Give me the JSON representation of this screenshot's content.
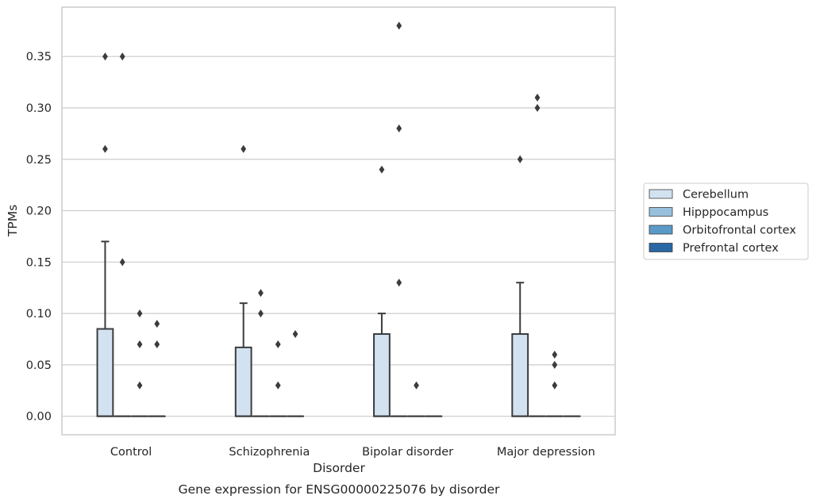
{
  "chart_data": {
    "type": "box",
    "title": "",
    "caption": "Gene expression for ENSG00000225076 by disorder",
    "xlabel": "Disorder",
    "ylabel": "TPMs",
    "ylim": [
      -0.018,
      0.398
    ],
    "yticks": [
      0.0,
      0.05,
      0.1,
      0.15,
      0.2,
      0.25,
      0.3,
      0.35
    ],
    "ytick_labels": [
      "0.00",
      "0.05",
      "0.10",
      "0.15",
      "0.20",
      "0.25",
      "0.30",
      "0.35"
    ],
    "grid": "horizontal",
    "legend_position": "right",
    "categories": [
      "Control",
      "Schizophrenia",
      "Bipolar disorder",
      "Major depression"
    ],
    "colors": {
      "Cerebellum": "#d3e2f1",
      "Hipppocampus": "#97c0dd",
      "Orbitofrontal cortex": "#5a9ac8",
      "Prefrontal cortex": "#2967a5",
      "line": "#3c3c3c",
      "grid": "#cccccc",
      "frame": "#cccccc"
    },
    "series": [
      {
        "name": "Cerebellum",
        "boxes": [
          {
            "q1": 0.0,
            "median": 0.0,
            "q3": 0.085,
            "whislo": 0.0,
            "whishi": 0.17,
            "fliers": [
              0.26,
              0.35
            ]
          },
          {
            "q1": 0.0,
            "median": 0.0,
            "q3": 0.067,
            "whislo": 0.0,
            "whishi": 0.11,
            "fliers": [
              0.26
            ]
          },
          {
            "q1": 0.0,
            "median": 0.0,
            "q3": 0.08,
            "whislo": 0.0,
            "whishi": 0.1,
            "fliers": [
              0.24
            ]
          },
          {
            "q1": 0.0,
            "median": 0.0,
            "q3": 0.08,
            "whislo": 0.0,
            "whishi": 0.13,
            "fliers": [
              0.25
            ]
          }
        ]
      },
      {
        "name": "Hipppocampus",
        "boxes": [
          {
            "q1": 0.0,
            "median": 0.0,
            "q3": 0.0,
            "whislo": 0.0,
            "whishi": 0.0,
            "fliers": [
              0.15,
              0.35
            ]
          },
          {
            "q1": 0.0,
            "median": 0.0,
            "q3": 0.0,
            "whislo": 0.0,
            "whishi": 0.0,
            "fliers": [
              0.1,
              0.12
            ]
          },
          {
            "q1": 0.0,
            "median": 0.0,
            "q3": 0.0,
            "whislo": 0.0,
            "whishi": 0.0,
            "fliers": [
              0.13,
              0.28,
              0.38
            ]
          },
          {
            "q1": 0.0,
            "median": 0.0,
            "q3": 0.0,
            "whislo": 0.0,
            "whishi": 0.0,
            "fliers": [
              0.3,
              0.31
            ]
          }
        ]
      },
      {
        "name": "Orbitofrontal cortex",
        "boxes": [
          {
            "q1": 0.0,
            "median": 0.0,
            "q3": 0.0,
            "whislo": 0.0,
            "whishi": 0.0,
            "fliers": [
              0.03,
              0.07,
              0.1
            ]
          },
          {
            "q1": 0.0,
            "median": 0.0,
            "q3": 0.0,
            "whislo": 0.0,
            "whishi": 0.0,
            "fliers": [
              0.03,
              0.07
            ]
          },
          {
            "q1": 0.0,
            "median": 0.0,
            "q3": 0.0,
            "whislo": 0.0,
            "whishi": 0.0,
            "fliers": [
              0.03
            ]
          },
          {
            "q1": 0.0,
            "median": 0.0,
            "q3": 0.0,
            "whislo": 0.0,
            "whishi": 0.0,
            "fliers": [
              0.03,
              0.05,
              0.06
            ]
          }
        ]
      },
      {
        "name": "Prefrontal cortex",
        "boxes": [
          {
            "q1": 0.0,
            "median": 0.0,
            "q3": 0.0,
            "whislo": 0.0,
            "whishi": 0.0,
            "fliers": [
              0.07,
              0.09
            ]
          },
          {
            "q1": 0.0,
            "median": 0.0,
            "q3": 0.0,
            "whislo": 0.0,
            "whishi": 0.0,
            "fliers": [
              0.08
            ]
          },
          {
            "q1": 0.0,
            "median": 0.0,
            "q3": 0.0,
            "whislo": 0.0,
            "whishi": 0.0,
            "fliers": []
          },
          {
            "q1": 0.0,
            "median": 0.0,
            "q3": 0.0,
            "whislo": 0.0,
            "whishi": 0.0,
            "fliers": []
          }
        ]
      }
    ]
  }
}
